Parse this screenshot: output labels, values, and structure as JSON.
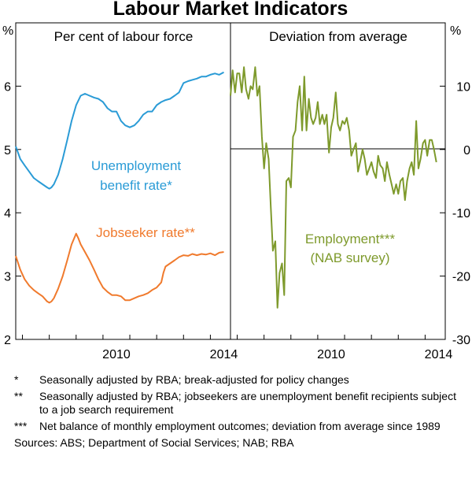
{
  "chart_data": {
    "type": "line",
    "title": "Labour Market Indicators",
    "colors": {
      "unemployment": "#2a9bd6",
      "jobseeker": "#f07a2d",
      "employment": "#7e9a2c"
    },
    "panels": [
      {
        "title": "Per cent of labour force",
        "unit": "%",
        "xlim": [
          2006.75,
          2014.75
        ],
        "ylim": [
          2,
          7
        ],
        "yticks": [
          "2",
          "3",
          "4",
          "5",
          "6"
        ],
        "xticks": [
          "2010",
          "2014"
        ],
        "series": [
          {
            "name": "Unemployment benefit rate*",
            "label_lines": [
              "Unemployment",
              "benefit rate*"
            ],
            "x": [
              2006.75,
              2006.92,
              2007.08,
              2007.25,
              2007.42,
              2007.58,
              2007.75,
              2007.92,
              2008.0,
              2008.08,
              2008.17,
              2008.33,
              2008.5,
              2008.67,
              2008.83,
              2009.0,
              2009.17,
              2009.33,
              2009.5,
              2009.67,
              2009.83,
              2010.0,
              2010.17,
              2010.33,
              2010.5,
              2010.67,
              2010.83,
              2011.0,
              2011.17,
              2011.33,
              2011.5,
              2011.67,
              2011.83,
              2012.0,
              2012.17,
              2012.33,
              2012.5,
              2012.67,
              2012.83,
              2013.0,
              2013.17,
              2013.33,
              2013.5,
              2013.67,
              2013.83,
              2014.0,
              2014.17,
              2014.33,
              2014.5
            ],
            "values": [
              5.05,
              4.85,
              4.75,
              4.65,
              4.55,
              4.5,
              4.45,
              4.4,
              4.38,
              4.4,
              4.45,
              4.6,
              4.85,
              5.15,
              5.45,
              5.7,
              5.85,
              5.88,
              5.85,
              5.82,
              5.8,
              5.75,
              5.65,
              5.6,
              5.6,
              5.45,
              5.38,
              5.35,
              5.38,
              5.45,
              5.55,
              5.6,
              5.6,
              5.7,
              5.75,
              5.78,
              5.8,
              5.85,
              5.9,
              6.05,
              6.08,
              6.1,
              6.12,
              6.15,
              6.15,
              6.18,
              6.2,
              6.18,
              6.22
            ]
          },
          {
            "name": "Jobseeker rate**",
            "label_lines": [
              "Jobseeker rate**"
            ],
            "x": [
              2006.75,
              2006.92,
              2007.08,
              2007.25,
              2007.42,
              2007.58,
              2007.75,
              2007.92,
              2008.0,
              2008.08,
              2008.17,
              2008.33,
              2008.5,
              2008.67,
              2008.83,
              2009.0,
              2009.08,
              2009.17,
              2009.33,
              2009.5,
              2009.67,
              2009.83,
              2010.0,
              2010.17,
              2010.33,
              2010.5,
              2010.67,
              2010.83,
              2011.0,
              2011.17,
              2011.33,
              2011.5,
              2011.67,
              2011.83,
              2012.0,
              2012.17,
              2012.25,
              2012.33,
              2012.5,
              2012.67,
              2012.83,
              2013.0,
              2013.17,
              2013.33,
              2013.5,
              2013.67,
              2013.83,
              2014.0,
              2014.17,
              2014.33,
              2014.5
            ],
            "values": [
              3.32,
              3.1,
              2.95,
              2.85,
              2.78,
              2.73,
              2.68,
              2.6,
              2.58,
              2.6,
              2.65,
              2.8,
              3.0,
              3.25,
              3.5,
              3.67,
              3.6,
              3.5,
              3.38,
              3.25,
              3.1,
              2.95,
              2.82,
              2.75,
              2.7,
              2.7,
              2.68,
              2.62,
              2.62,
              2.65,
              2.68,
              2.7,
              2.73,
              2.78,
              2.82,
              2.9,
              3.05,
              3.15,
              3.2,
              3.25,
              3.3,
              3.33,
              3.32,
              3.35,
              3.33,
              3.35,
              3.34,
              3.36,
              3.33,
              3.37,
              3.38
            ]
          }
        ]
      },
      {
        "title": "Deviation from average",
        "unit": "%",
        "xlim": [
          2006.75,
          2014.75
        ],
        "ylim": [
          -30,
          20
        ],
        "yticks": [
          "-30",
          "-20",
          "-10",
          "0",
          "10"
        ],
        "xticks": [
          "2010",
          "2014"
        ],
        "series": [
          {
            "name": "Employment*** (NAB survey)",
            "label_lines": [
              "Employment***",
              "(NAB survey)"
            ],
            "x": [
              2006.75,
              2006.83,
              2006.92,
              2007.0,
              2007.08,
              2007.17,
              2007.25,
              2007.33,
              2007.42,
              2007.5,
              2007.58,
              2007.67,
              2007.75,
              2007.83,
              2007.92,
              2008.0,
              2008.08,
              2008.17,
              2008.25,
              2008.33,
              2008.42,
              2008.5,
              2008.58,
              2008.67,
              2008.75,
              2008.83,
              2008.92,
              2009.0,
              2009.08,
              2009.17,
              2009.25,
              2009.33,
              2009.42,
              2009.5,
              2009.58,
              2009.67,
              2009.75,
              2009.83,
              2009.92,
              2010.0,
              2010.08,
              2010.17,
              2010.25,
              2010.33,
              2010.42,
              2010.5,
              2010.58,
              2010.67,
              2010.75,
              2010.83,
              2010.92,
              2011.0,
              2011.08,
              2011.17,
              2011.25,
              2011.33,
              2011.42,
              2011.5,
              2011.58,
              2011.67,
              2011.75,
              2011.83,
              2011.92,
              2012.0,
              2012.08,
              2012.17,
              2012.25,
              2012.33,
              2012.42,
              2012.5,
              2012.58,
              2012.67,
              2012.75,
              2012.83,
              2012.92,
              2013.0,
              2013.08,
              2013.17,
              2013.25,
              2013.33,
              2013.42,
              2013.5,
              2013.58,
              2013.67,
              2013.75,
              2013.83,
              2013.92,
              2014.0,
              2014.08,
              2014.17,
              2014.25,
              2014.33,
              2014.42
            ],
            "values": [
              8.5,
              12.5,
              9.0,
              12.0,
              12.0,
              9.0,
              13.0,
              9.5,
              8.0,
              10.0,
              9.5,
              13.0,
              8.5,
              10.0,
              2.0,
              -3.0,
              1.0,
              -1.5,
              -9.0,
              -16.0,
              -14.5,
              -25.0,
              -19.5,
              -18.0,
              -23.0,
              -5.0,
              -4.5,
              -6.0,
              2.0,
              3.0,
              7.5,
              10.0,
              3.0,
              11.5,
              3.0,
              8.0,
              5.0,
              4.0,
              5.0,
              7.5,
              4.0,
              5.5,
              4.0,
              5.5,
              -0.5,
              3.5,
              5.0,
              9.0,
              4.0,
              3.0,
              4.5,
              4.0,
              5.0,
              3.0,
              -1.0,
              0.0,
              1.0,
              -3.5,
              -2.0,
              0.0,
              -1.5,
              -4.0,
              -3.0,
              -2.0,
              -3.5,
              -4.5,
              -1.0,
              -2.5,
              -3.0,
              -5.0,
              -2.0,
              -4.0,
              -5.5,
              -7.0,
              -5.5,
              -7.0,
              -5.0,
              -4.5,
              -8.0,
              -5.0,
              -3.0,
              -2.0,
              -4.0,
              4.5,
              -3.0,
              -1.5,
              1.0,
              1.5,
              -1.0,
              1.5,
              1.5,
              0.0,
              -2.0
            ]
          }
        ]
      }
    ]
  },
  "notes": [
    {
      "marker": "*",
      "text": "Seasonally adjusted by RBA; break-adjusted for policy changes"
    },
    {
      "marker": "**",
      "text": "Seasonally adjusted by RBA; jobseekers are unemployment benefit recipients subject to a job search requirement"
    },
    {
      "marker": "***",
      "text": "Net balance of monthly employment outcomes; deviation from average since 1989"
    }
  ],
  "sources": "Sources:  ABS; Department of Social Services; NAB; RBA"
}
